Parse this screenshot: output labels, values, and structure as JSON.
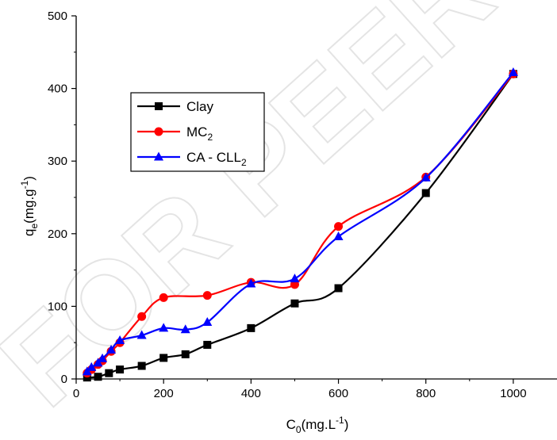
{
  "watermark": "FOR PEER REVIEW",
  "chart_data": {
    "type": "line",
    "xlabel": {
      "base": "C",
      "sub": "0",
      "unit_prefix": "(mg.L",
      "unit_sup": "-1",
      "unit_suffix": ")"
    },
    "ylabel": {
      "base": "q",
      "sub": "e",
      "unit_prefix": "(mg.g",
      "unit_sup": "-1",
      "unit_suffix": ")"
    },
    "xlim": [
      0,
      1100
    ],
    "ylim": [
      0,
      500
    ],
    "x_ticks": [
      0,
      200,
      400,
      600,
      800,
      1000
    ],
    "y_ticks": [
      0,
      100,
      200,
      300,
      400,
      500
    ],
    "grid": false,
    "legend_position": "upper-left",
    "series": [
      {
        "name": "Clay",
        "legend_base": "Clay",
        "legend_sub": "",
        "color": "#000000",
        "marker": "square",
        "x": [
          25,
          50,
          75,
          100,
          150,
          200,
          250,
          300,
          400,
          500,
          600,
          800,
          1000
        ],
        "y": [
          2,
          3,
          8,
          13,
          18,
          29,
          34,
          47,
          70,
          104,
          125,
          256,
          420
        ]
      },
      {
        "name": "MC2",
        "legend_base": "MC",
        "legend_sub": "2",
        "color": "#ff0000",
        "marker": "circle",
        "x": [
          25,
          35,
          50,
          60,
          80,
          100,
          150,
          200,
          300,
          400,
          500,
          600,
          800,
          1000
        ],
        "y": [
          8,
          13,
          20,
          25,
          38,
          50,
          86,
          112,
          115,
          133,
          130,
          210,
          278,
          420
        ]
      },
      {
        "name": "CA - CLL2",
        "legend_base": "CA - CLL",
        "legend_sub": "2",
        "color": "#0000ff",
        "marker": "triangle",
        "x": [
          25,
          35,
          50,
          60,
          80,
          100,
          150,
          200,
          250,
          300,
          400,
          500,
          600,
          800,
          1000
        ],
        "y": [
          10,
          16,
          22,
          28,
          40,
          53,
          60,
          70,
          68,
          78,
          131,
          138,
          196,
          277,
          422
        ]
      }
    ]
  }
}
